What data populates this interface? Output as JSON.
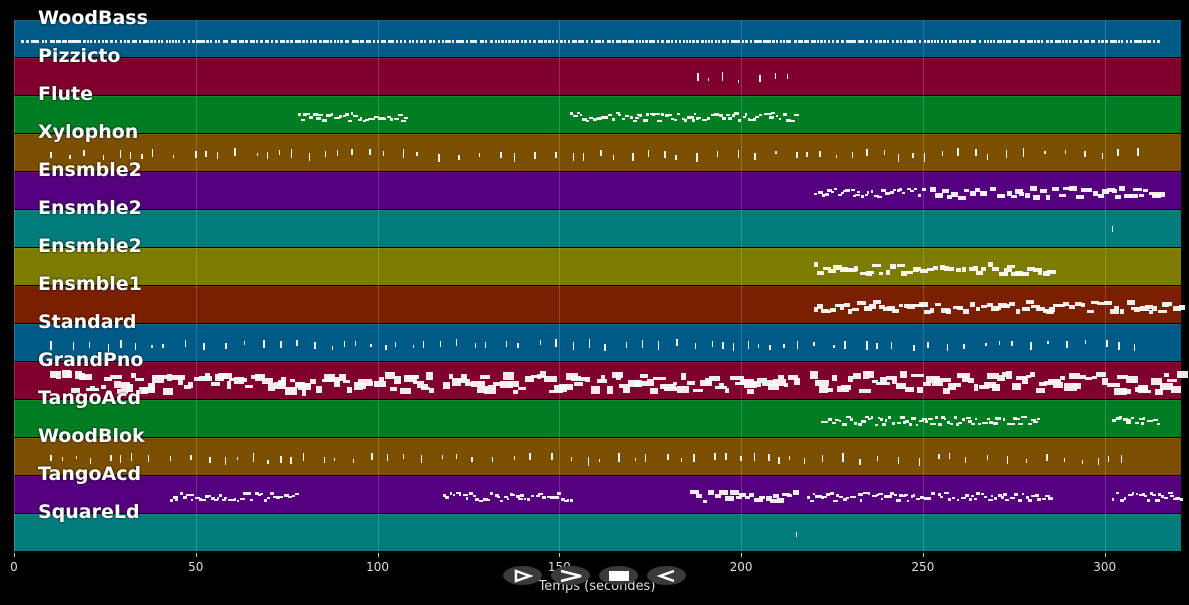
{
  "tracks": [
    {
      "name": "WoodBass",
      "color": "#005a87"
    },
    {
      "name": "Pizzicto",
      "color": "#7f002c"
    },
    {
      "name": "Flute",
      "color": "#007c22"
    },
    {
      "name": "Xylophon",
      "color": "#7a5000"
    },
    {
      "name": "Ensmble2",
      "color": "#54007e"
    },
    {
      "name": "Ensmble2",
      "color": "#007c7c"
    },
    {
      "name": "Ensmble2",
      "color": "#7c7c00"
    },
    {
      "name": "Ensmble1",
      "color": "#7a2000"
    },
    {
      "name": "Standard",
      "color": "#005a87"
    },
    {
      "name": "GrandPno",
      "color": "#7f002c"
    },
    {
      "name": "TangoAcd",
      "color": "#007c22"
    },
    {
      "name": "WoodBlok",
      "color": "#7a5000"
    },
    {
      "name": "TangoAcd",
      "color": "#54007e"
    },
    {
      "name": "SquareLd",
      "color": "#007c7c"
    }
  ],
  "axis": {
    "xmin": 0,
    "xmax": 321,
    "ticks": [
      "0",
      "50",
      "100",
      "150",
      "200",
      "250",
      "300"
    ],
    "label": "Temps (secondes)"
  },
  "controls": [
    {
      "name": "play-icon"
    },
    {
      "name": "fast-forward-icon"
    },
    {
      "name": "stop-icon"
    },
    {
      "name": "rewind-icon"
    }
  ],
  "note_ranges": [
    [
      [
        2,
        315,
        "bass"
      ]
    ],
    [
      [
        188,
        215,
        "sparse"
      ]
    ],
    [
      [
        78,
        108,
        "small"
      ],
      [
        153,
        215,
        "small"
      ]
    ],
    [
      [
        10,
        310,
        "sparse"
      ]
    ],
    [
      [
        220,
        250,
        "small"
      ],
      [
        252,
        315,
        "med"
      ]
    ],
    [
      [
        302,
        303,
        "sparse"
      ]
    ],
    [
      [
        220,
        285,
        "med"
      ]
    ],
    [
      [
        220,
        321,
        "med"
      ]
    ],
    [
      [
        10,
        310,
        "sparse"
      ]
    ],
    [
      [
        10,
        115,
        "big"
      ],
      [
        118,
        216,
        "big"
      ],
      [
        219,
        321,
        "big"
      ]
    ],
    [
      [
        222,
        282,
        "small"
      ],
      [
        302,
        315,
        "small"
      ]
    ],
    [
      [
        10,
        310,
        "sparse"
      ]
    ],
    [
      [
        43,
        78,
        "small"
      ],
      [
        118,
        153,
        "small"
      ],
      [
        186,
        215,
        "med"
      ],
      [
        218,
        285,
        "small"
      ],
      [
        302,
        321,
        "small"
      ]
    ],
    [
      [
        215,
        220,
        "sparse"
      ]
    ]
  ]
}
